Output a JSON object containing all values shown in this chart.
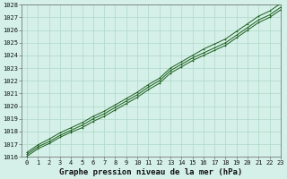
{
  "title": "Graphe pression niveau de la mer (hPa)",
  "background_color": "#d4f0e8",
  "grid_color": "#b0d8c8",
  "line_color": "#1a5c1a",
  "x_values": [
    0,
    1,
    2,
    3,
    4,
    5,
    6,
    7,
    8,
    9,
    10,
    11,
    12,
    13,
    14,
    15,
    16,
    17,
    18,
    19,
    20,
    21,
    22,
    23
  ],
  "y_main": [
    1016.2,
    1016.8,
    1017.2,
    1017.7,
    1018.1,
    1018.5,
    1019.0,
    1019.4,
    1019.9,
    1020.4,
    1020.9,
    1021.5,
    1022.0,
    1022.8,
    1023.3,
    1023.8,
    1024.2,
    1024.6,
    1025.0,
    1025.6,
    1026.2,
    1026.8,
    1027.2,
    1027.8
  ],
  "y_upper": [
    1016.35,
    1016.95,
    1017.4,
    1017.9,
    1018.3,
    1018.7,
    1019.2,
    1019.6,
    1020.1,
    1020.6,
    1021.1,
    1021.7,
    1022.2,
    1023.0,
    1023.5,
    1024.0,
    1024.5,
    1024.9,
    1025.3,
    1025.9,
    1026.5,
    1027.1,
    1027.5,
    1028.1
  ],
  "y_lower": [
    1016.05,
    1016.65,
    1017.05,
    1017.55,
    1017.95,
    1018.3,
    1018.8,
    1019.2,
    1019.7,
    1020.2,
    1020.7,
    1021.3,
    1021.8,
    1022.6,
    1023.1,
    1023.6,
    1024.0,
    1024.4,
    1024.8,
    1025.4,
    1026.0,
    1026.6,
    1027.0,
    1027.6
  ],
  "ylim": [
    1016,
    1028
  ],
  "xlim": [
    -0.5,
    23
  ],
  "yticks": [
    1016,
    1017,
    1018,
    1019,
    1020,
    1021,
    1022,
    1023,
    1024,
    1025,
    1026,
    1027,
    1028
  ],
  "xticks": [
    0,
    1,
    2,
    3,
    4,
    5,
    6,
    7,
    8,
    9,
    10,
    11,
    12,
    13,
    14,
    15,
    16,
    17,
    18,
    19,
    20,
    21,
    22,
    23
  ],
  "title_fontsize": 6.5,
  "tick_fontsize": 5.0,
  "linewidth": 0.7,
  "markersize": 2.0
}
